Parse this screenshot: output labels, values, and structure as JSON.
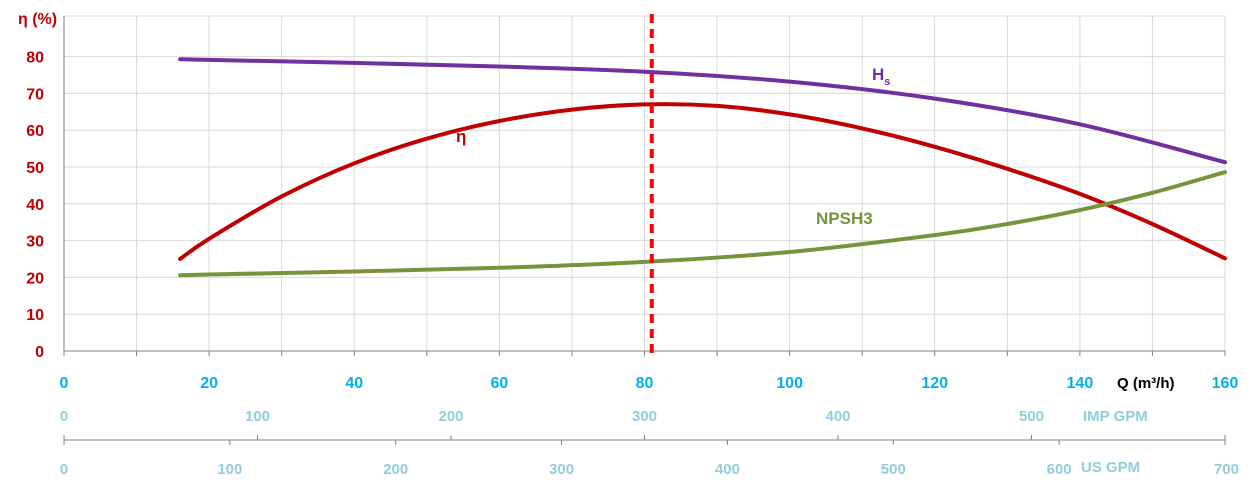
{
  "chart_data": {
    "type": "line",
    "ylabel": "η (%)",
    "xlabel": "Q (m³/h)",
    "ylim": [
      0,
      85
    ],
    "xlim": [
      0,
      160
    ],
    "y_ticks": [
      0,
      10,
      20,
      30,
      40,
      50,
      60,
      70,
      80
    ],
    "x_ticks": [
      0,
      20,
      40,
      60,
      80,
      100,
      120,
      140,
      160
    ],
    "grid": true,
    "vertical_marker": {
      "x": 81
    },
    "series": [
      {
        "name": "Hs",
        "label_main": "H",
        "label_sub": "s",
        "color": "#7030a0",
        "points": [
          [
            16,
            79.3
          ],
          [
            20,
            79.1
          ],
          [
            40,
            78.3
          ],
          [
            60,
            77.3
          ],
          [
            80,
            75.9
          ],
          [
            100,
            73.2
          ],
          [
            120,
            68.6
          ],
          [
            140,
            61.6
          ],
          [
            160,
            51.3
          ]
        ]
      },
      {
        "name": "η",
        "label_main": "η",
        "color": "#c00000",
        "points": [
          [
            16,
            25
          ],
          [
            20,
            30.5
          ],
          [
            30,
            42
          ],
          [
            40,
            51
          ],
          [
            50,
            57.7
          ],
          [
            60,
            62.5
          ],
          [
            70,
            65.6
          ],
          [
            80,
            67
          ],
          [
            90,
            66.6
          ],
          [
            100,
            64.3
          ],
          [
            110,
            60.5
          ],
          [
            120,
            55.5
          ],
          [
            130,
            49.5
          ],
          [
            140,
            42.7
          ],
          [
            150,
            34.5
          ],
          [
            160,
            25.2
          ]
        ]
      },
      {
        "name": "NPSH3",
        "label_main": "NPSH3",
        "color": "#77933c",
        "points": [
          [
            16,
            20.6
          ],
          [
            20,
            20.8
          ],
          [
            40,
            21.6
          ],
          [
            60,
            22.6
          ],
          [
            80,
            24.2
          ],
          [
            100,
            26.9
          ],
          [
            120,
            31.5
          ],
          [
            130,
            34.5
          ],
          [
            140,
            38.3
          ],
          [
            150,
            43
          ],
          [
            160,
            48.6
          ]
        ]
      }
    ],
    "secondary_axes": [
      {
        "name": "IMP GPM",
        "ticks": [
          0,
          100,
          200,
          300,
          400,
          500
        ],
        "max_value": 600,
        "color": "#92cddc"
      },
      {
        "name": "US GPM",
        "ticks": [
          0,
          100,
          200,
          300,
          400,
          500,
          600,
          700
        ],
        "max_value": 700,
        "color": "#92cddc"
      }
    ],
    "colors": {
      "y_tick": "#c00000",
      "x_tick": "#00b0f0",
      "axis_title": "#000000",
      "grid": "#d9d9d9",
      "marker": "#ff0000",
      "axis_line": "#808080"
    }
  }
}
